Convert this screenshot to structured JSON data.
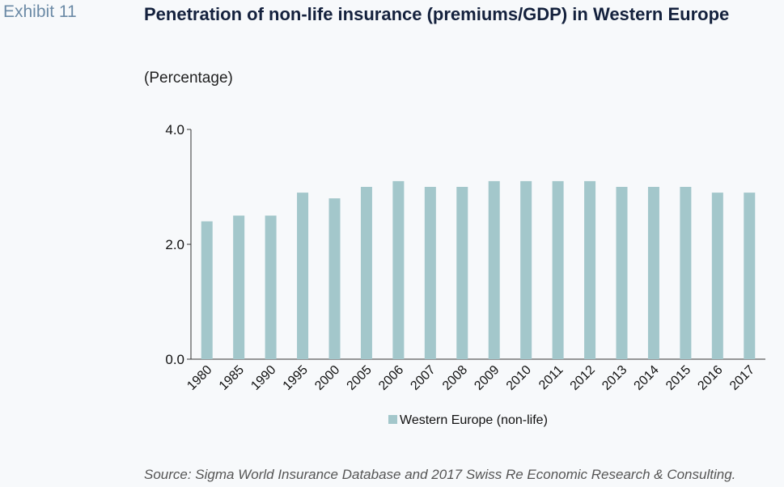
{
  "header": {
    "exhibit": "Exhibit 11",
    "title": "Penetration of non-life insurance (premiums/GDP) in Western Europe",
    "subtitle": "(Percentage)"
  },
  "footer": {
    "source": "Source: Sigma World Insurance Database and 2017 Swiss Re Economic Research & Consulting."
  },
  "chart_data": {
    "type": "bar",
    "categories": [
      "1980",
      "1985",
      "1990",
      "1995",
      "2000",
      "2005",
      "2006",
      "2007",
      "2008",
      "2009",
      "2010",
      "2011",
      "2012",
      "2013",
      "2014",
      "2015",
      "2016",
      "2017"
    ],
    "series": [
      {
        "name": "Western Europe (non-life)",
        "color": "#a3c7cb",
        "values": [
          2.4,
          2.5,
          2.5,
          2.9,
          2.8,
          3.0,
          3.1,
          3.0,
          3.0,
          3.1,
          3.1,
          3.1,
          3.1,
          3.0,
          3.0,
          3.0,
          2.9,
          2.9
        ]
      }
    ],
    "ylim": [
      0,
      4
    ],
    "yticks": [
      0,
      2,
      4
    ],
    "ytick_labels": [
      "0.0",
      "2.0",
      "4.0"
    ],
    "grid": false,
    "legend": "bottom-center"
  }
}
